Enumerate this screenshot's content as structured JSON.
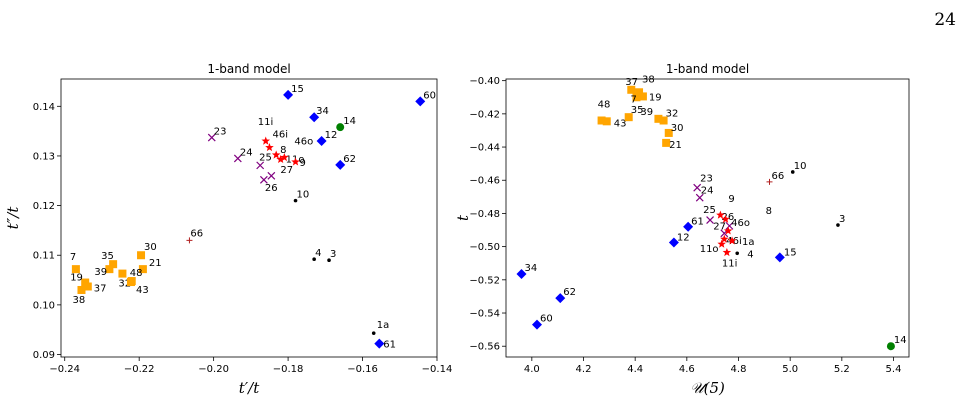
{
  "page_number": "24",
  "chart_data": [
    {
      "type": "scatter",
      "title": "1-band model",
      "xlabel": "t′/t",
      "ylabel": "t″/t",
      "xlim": [
        -0.241,
        -0.14
      ],
      "ylim": [
        0.0895,
        0.1455
      ],
      "xticks": [
        -0.24,
        -0.22,
        -0.2,
        -0.18,
        -0.16,
        -0.14
      ],
      "xtick_labels": [
        "−0.24",
        "−0.22",
        "−0.20",
        "−0.18",
        "−0.16",
        "−0.14"
      ],
      "yticks": [
        0.09,
        0.1,
        0.11,
        0.12,
        0.13,
        0.14
      ],
      "ytick_labels": [
        "0.09",
        "0.10",
        "0.11",
        "0.12",
        "0.13",
        "0.14"
      ],
      "grid": false,
      "series": [
        {
          "marker": "square",
          "color": "#ffa500",
          "points": [
            {
              "label": "7",
              "x": -0.237,
              "y": 0.1072,
              "dx": -6,
              "dy": -9
            },
            {
              "label": "19",
              "x": -0.2345,
              "y": 0.1045,
              "dx": -15,
              "dy": -2
            },
            {
              "label": "38",
              "x": -0.2355,
              "y": 0.103,
              "dx": -9,
              "dy": 13
            },
            {
              "label": "37",
              "x": -0.2338,
              "y": 0.1037,
              "dx": 6,
              "dy": 5
            },
            {
              "label": "35",
              "x": -0.227,
              "y": 0.1082,
              "dx": -12,
              "dy": -5
            },
            {
              "label": "39",
              "x": -0.228,
              "y": 0.1072,
              "dx": -15,
              "dy": 6
            },
            {
              "label": "32",
              "x": -0.2245,
              "y": 0.1063,
              "dx": -4,
              "dy": 13
            },
            {
              "label": "30",
              "x": -0.2195,
              "y": 0.11,
              "dx": 0,
              "dy": -5
            },
            {
              "label": "21",
              "x": -0.219,
              "y": 0.1072,
              "dx": 6,
              "dy": -3
            },
            {
              "label": "48",
              "x": -0.222,
              "y": 0.1048,
              "dx": -2,
              "dy": -5
            },
            {
              "label": "43",
              "x": -0.2222,
              "y": 0.1046,
              "dx": 5,
              "dy": 11
            }
          ]
        },
        {
          "marker": "x",
          "color": "#800080",
          "points": [
            {
              "label": "23",
              "x": -0.2005,
              "y": 0.1337,
              "dx": 2,
              "dy": -3
            },
            {
              "label": "24",
              "x": -0.1935,
              "y": 0.1295,
              "dx": 2,
              "dy": -3
            },
            {
              "label": "25",
              "x": -0.1875,
              "y": 0.1281,
              "dx": -1,
              "dy": -5
            },
            {
              "label": "26",
              "x": -0.1865,
              "y": 0.1252,
              "dx": 1,
              "dy": 11
            },
            {
              "label": "27",
              "x": -0.1845,
              "y": 0.126,
              "dx": 9,
              "dy": -3
            }
          ]
        },
        {
          "marker": "star",
          "color": "#ff0000",
          "points": [
            {
              "label": "11i",
              "x": -0.186,
              "y": 0.133,
              "dx": -8,
              "dy": -16
            },
            {
              "label": "46i",
              "x": -0.185,
              "y": 0.1317,
              "dx": 3,
              "dy": -10
            },
            {
              "label": "8",
              "x": -0.1832,
              "y": 0.1302,
              "dx": 4,
              "dy": -2
            },
            {
              "label": "11o",
              "x": -0.182,
              "y": 0.1293,
              "dx": 5,
              "dy": 3
            },
            {
              "label": "46o",
              "x": -0.181,
              "y": 0.1297,
              "dx": 10,
              "dy": -13
            },
            {
              "label": "9",
              "x": -0.178,
              "y": 0.1288,
              "dx": 4,
              "dy": 4
            }
          ]
        },
        {
          "marker": "diamond",
          "color": "#0000ff",
          "points": [
            {
              "label": "15",
              "x": -0.18,
              "y": 0.1423,
              "dx": 3,
              "dy": -3
            },
            {
              "label": "34",
              "x": -0.173,
              "y": 0.1378,
              "dx": 2,
              "dy": -3
            },
            {
              "label": "12",
              "x": -0.171,
              "y": 0.133,
              "dx": 3,
              "dy": -3
            },
            {
              "label": "62",
              "x": -0.166,
              "y": 0.1282,
              "dx": 3,
              "dy": -3
            },
            {
              "label": "60",
              "x": -0.1445,
              "y": 0.141,
              "dx": 3,
              "dy": -3
            },
            {
              "label": "61",
              "x": -0.1555,
              "y": 0.0922,
              "dx": 4,
              "dy": 4
            }
          ]
        },
        {
          "marker": "circle",
          "color": "#008000",
          "points": [
            {
              "label": "14",
              "x": -0.166,
              "y": 0.1358,
              "dx": 3,
              "dy": -3
            }
          ]
        },
        {
          "marker": "dot",
          "color": "#000000",
          "points": [
            {
              "label": "10",
              "x": -0.178,
              "y": 0.121,
              "dx": 1,
              "dy": -3
            },
            {
              "label": "4",
              "x": -0.173,
              "y": 0.1092,
              "dx": 1,
              "dy": -3
            },
            {
              "label": "3",
              "x": -0.169,
              "y": 0.109,
              "dx": 1,
              "dy": -3
            },
            {
              "label": "1a",
              "x": -0.157,
              "y": 0.0943,
              "dx": 0,
              "dy": -5
            }
          ]
        },
        {
          "marker": "plus",
          "color": "#b22222",
          "points": [
            {
              "label": "66",
              "x": -0.2065,
              "y": 0.113,
              "dx": 1,
              "dy": -4
            }
          ]
        }
      ]
    },
    {
      "type": "scatter",
      "title": "1-band model",
      "xlabel": "𝒰(5)",
      "ylabel": "t",
      "xlim": [
        3.9,
        5.46
      ],
      "ylim": [
        -0.5665,
        -0.399
      ],
      "xticks": [
        4.0,
        4.2,
        4.4,
        4.6,
        4.8,
        5.0,
        5.2,
        5.4
      ],
      "xtick_labels": [
        "4.0",
        "4.2",
        "4.4",
        "4.6",
        "4.8",
        "5.0",
        "5.2",
        "5.4"
      ],
      "yticks": [
        -0.56,
        -0.54,
        -0.52,
        -0.5,
        -0.48,
        -0.46,
        -0.44,
        -0.42,
        -0.4
      ],
      "ytick_labels": [
        "−0.56",
        "−0.54",
        "−0.52",
        "−0.50",
        "−0.48",
        "−0.46",
        "−0.44",
        "−0.42",
        "−0.40"
      ],
      "grid": false,
      "series": [
        {
          "marker": "square",
          "color": "#ffa500",
          "points": [
            {
              "label": "37",
              "x": 4.385,
              "y": -0.4055,
              "dx": -6,
              "dy": -5
            },
            {
              "label": "38",
              "x": 4.415,
              "y": -0.407,
              "dx": 3,
              "dy": -10
            },
            {
              "label": "7",
              "x": 4.405,
              "y": -0.41,
              "dx": -6,
              "dy": 5
            },
            {
              "label": "19",
              "x": 4.43,
              "y": -0.4095,
              "dx": 6,
              "dy": 4
            },
            {
              "label": "48",
              "x": 4.27,
              "y": -0.424,
              "dx": -4,
              "dy": -13
            },
            {
              "label": "43",
              "x": 4.29,
              "y": -0.4245,
              "dx": 7,
              "dy": 5
            },
            {
              "label": "35",
              "x": 4.375,
              "y": -0.422,
              "dx": 2,
              "dy": -4
            },
            {
              "label": "39",
              "x": 4.49,
              "y": -0.423,
              "dx": -18,
              "dy": -4
            },
            {
              "label": "32",
              "x": 4.51,
              "y": -0.424,
              "dx": 2,
              "dy": -4
            },
            {
              "label": "30",
              "x": 4.53,
              "y": -0.4315,
              "dx": 2,
              "dy": -2
            },
            {
              "label": "21",
              "x": 4.52,
              "y": -0.4375,
              "dx": 3,
              "dy": 5
            }
          ]
        },
        {
          "marker": "x",
          "color": "#800080",
          "points": [
            {
              "label": "23",
              "x": 4.64,
              "y": -0.4645,
              "dx": 0,
              "dy": -6
            },
            {
              "label": "24",
              "x": 4.65,
              "y": -0.4705,
              "dx": 1,
              "dy": -4
            },
            {
              "label": "25",
              "x": 4.69,
              "y": -0.484,
              "dx": -7,
              "dy": -7
            },
            {
              "label": "27",
              "x": 4.745,
              "y": -0.492,
              "dx": -11,
              "dy": -4
            },
            {
              "label": "26",
              "x": 4.765,
              "y": -0.4875,
              "dx": -8,
              "dy": -6
            }
          ]
        },
        {
          "marker": "star",
          "color": "#ff0000",
          "points": [
            {
              "label": "9",
              "x": 4.73,
              "y": -0.481,
              "dx": 8,
              "dy": -13
            },
            {
              "label": "8",
              "x": 4.75,
              "y": -0.4835,
              "dx": 40,
              "dy": -5
            },
            {
              "label": "46o",
              "x": 4.76,
              "y": -0.4905,
              "dx": 0,
              "dy": -5
            },
            {
              "label": "46i",
              "x": 4.745,
              "y": -0.4955,
              "dx": 2,
              "dy": 5
            },
            {
              "label": "1a",
              "x": 4.775,
              "y": -0.4965,
              "dx": 10,
              "dy": 4
            },
            {
              "label": "11o",
              "x": 4.735,
              "y": -0.4985,
              "dx": -22,
              "dy": 8
            },
            {
              "label": "11i",
              "x": 4.755,
              "y": -0.5035,
              "dx": -5,
              "dy": 14
            }
          ]
        },
        {
          "marker": "diamond",
          "color": "#0000ff",
          "points": [
            {
              "label": "61",
              "x": 4.605,
              "y": -0.488,
              "dx": 3,
              "dy": -2
            },
            {
              "label": "12",
              "x": 4.55,
              "y": -0.4975,
              "dx": 3,
              "dy": -2
            },
            {
              "label": "15",
              "x": 4.96,
              "y": -0.5065,
              "dx": 4,
              "dy": -2
            },
            {
              "label": "34",
              "x": 3.96,
              "y": -0.5165,
              "dx": 3,
              "dy": -3
            },
            {
              "label": "62",
              "x": 4.11,
              "y": -0.531,
              "dx": 3,
              "dy": -3
            },
            {
              "label": "60",
              "x": 4.02,
              "y": -0.547,
              "dx": 3,
              "dy": -3
            }
          ]
        },
        {
          "marker": "circle",
          "color": "#008000",
          "points": [
            {
              "label": "14",
              "x": 5.39,
              "y": -0.56,
              "dx": 3,
              "dy": -3
            }
          ]
        },
        {
          "marker": "dot",
          "color": "#000000",
          "points": [
            {
              "label": "10",
              "x": 5.01,
              "y": -0.455,
              "dx": 1,
              "dy": -3
            },
            {
              "label": "3",
              "x": 5.185,
              "y": -0.487,
              "dx": 1,
              "dy": -3
            },
            {
              "label": "4",
              "x": 4.795,
              "y": -0.504,
              "dx": 10,
              "dy": 4
            }
          ]
        },
        {
          "marker": "plus",
          "color": "#b22222",
          "points": [
            {
              "label": "66",
              "x": 4.92,
              "y": -0.461,
              "dx": 2,
              "dy": -3
            }
          ]
        }
      ]
    }
  ]
}
